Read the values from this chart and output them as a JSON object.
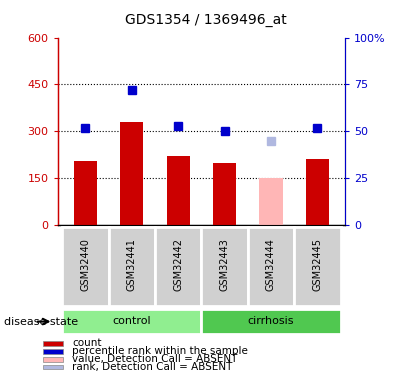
{
  "title": "GDS1354 / 1369496_at",
  "samples": [
    "GSM32440",
    "GSM32441",
    "GSM32442",
    "GSM32443",
    "GSM32444",
    "GSM32445"
  ],
  "bar_values": [
    205,
    330,
    220,
    200,
    150,
    210
  ],
  "bar_colors": [
    "#cc0000",
    "#cc0000",
    "#cc0000",
    "#cc0000",
    "#ffb6b6",
    "#cc0000"
  ],
  "rank_values": [
    52,
    72,
    53,
    50,
    45,
    52
  ],
  "rank_colors": [
    "#0000cc",
    "#0000cc",
    "#0000cc",
    "#0000cc",
    "#b0b8e0",
    "#0000cc"
  ],
  "groups": [
    {
      "label": "control",
      "samples": [
        0,
        1,
        2
      ],
      "color": "#90ee90"
    },
    {
      "label": "cirrhosis",
      "samples": [
        3,
        4,
        5
      ],
      "color": "#50c850"
    }
  ],
  "ylim_left": [
    0,
    600
  ],
  "ylim_right": [
    0,
    100
  ],
  "yticks_left": [
    0,
    150,
    300,
    450,
    600
  ],
  "yticks_right": [
    0,
    25,
    50,
    75,
    100
  ],
  "ytick_labels_left": [
    "0",
    "150",
    "300",
    "450",
    "600"
  ],
  "ytick_labels_right": [
    "0",
    "25",
    "50",
    "75",
    "100%"
  ],
  "hlines": [
    150,
    300,
    450
  ],
  "left_color": "#cc0000",
  "right_color": "#0000cc",
  "legend_items": [
    {
      "label": "count",
      "color": "#cc0000"
    },
    {
      "label": "percentile rank within the sample",
      "color": "#0000cc"
    },
    {
      "label": "value, Detection Call = ABSENT",
      "color": "#ffb6b6"
    },
    {
      "label": "rank, Detection Call = ABSENT",
      "color": "#b0b8e0"
    }
  ],
  "disease_state_label": "disease state",
  "bar_width": 0.5
}
